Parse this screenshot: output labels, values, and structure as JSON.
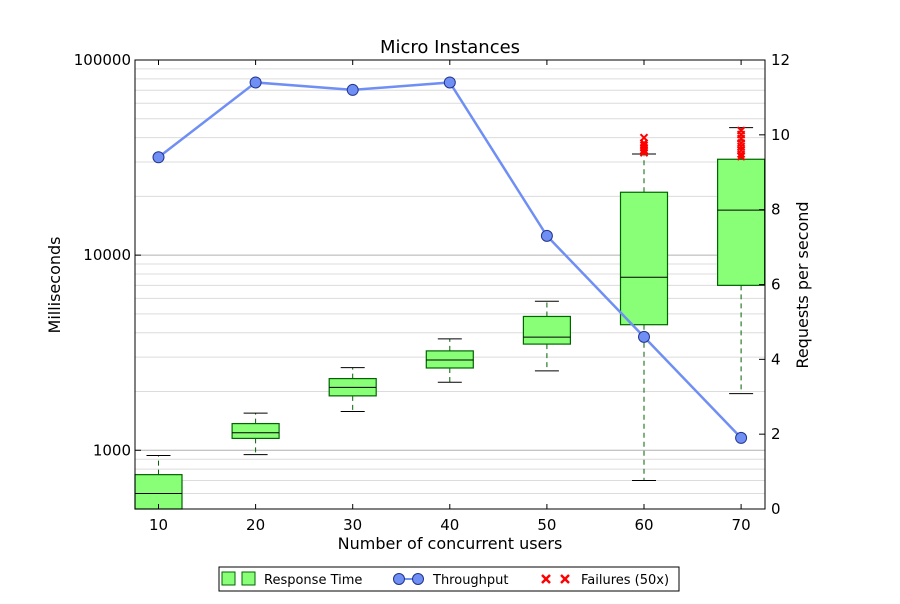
{
  "chart_data": {
    "type": "box",
    "title": "Micro Instances",
    "xlabel": "Number of concurrent users",
    "ylabel_left": "Milliseconds",
    "ylabel_right": "Requests per second",
    "x_ticks": [
      "10",
      "20",
      "30",
      "40",
      "50",
      "60",
      "70"
    ],
    "y_left_scale": "log",
    "y_left_lim": [
      500,
      100000
    ],
    "y_left_ticks": [
      "1000",
      "10000",
      "100000"
    ],
    "y_right_lim": [
      0,
      12
    ],
    "y_right_ticks": [
      "0",
      "2",
      "4",
      "6",
      "8",
      "10",
      "12"
    ],
    "grid": true,
    "colors": {
      "box_fill": "#88ff77",
      "box_edge": "#006400",
      "line": "#6f8ff5",
      "marker": "#6f8ff5",
      "failures": "#ff0000"
    },
    "boxes": [
      {
        "users": 10,
        "whisker_low": 500,
        "q1": 500,
        "median": 600,
        "q3": 750,
        "whisker_high": 940
      },
      {
        "users": 20,
        "whisker_low": 950,
        "q1": 1150,
        "median": 1230,
        "q3": 1370,
        "whisker_high": 1550
      },
      {
        "users": 30,
        "whisker_low": 1580,
        "q1": 1900,
        "median": 2100,
        "q3": 2330,
        "whisker_high": 2650
      },
      {
        "users": 40,
        "whisker_low": 2230,
        "q1": 2640,
        "median": 2900,
        "q3": 3230,
        "whisker_high": 3720
      },
      {
        "users": 50,
        "whisker_low": 2550,
        "q1": 3500,
        "median": 3800,
        "q3": 4850,
        "whisker_high": 5800
      },
      {
        "users": 60,
        "whisker_low": 700,
        "q1": 4400,
        "median": 7700,
        "q3": 21000,
        "whisker_high": 33000
      },
      {
        "users": 70,
        "whisker_low": 1950,
        "q1": 7000,
        "median": 17000,
        "q3": 31000,
        "whisker_high": 45000
      }
    ],
    "failures": [
      {
        "users": 60,
        "values": [
          33500,
          34500,
          35500,
          36500,
          37500,
          40000
        ]
      },
      {
        "users": 70,
        "values": [
          32000,
          33000,
          34500,
          36000,
          37500,
          39500,
          41500,
          43500
        ]
      }
    ],
    "throughput": {
      "name": "Throughput",
      "x": [
        10,
        20,
        30,
        40,
        50,
        60,
        70
      ],
      "y": [
        9.4,
        11.4,
        11.2,
        11.4,
        7.3,
        4.6,
        1.9
      ]
    },
    "legend": {
      "placement": "bottom-center",
      "entries": [
        "Response Time",
        "Throughput",
        "Failures (50x)"
      ]
    }
  }
}
